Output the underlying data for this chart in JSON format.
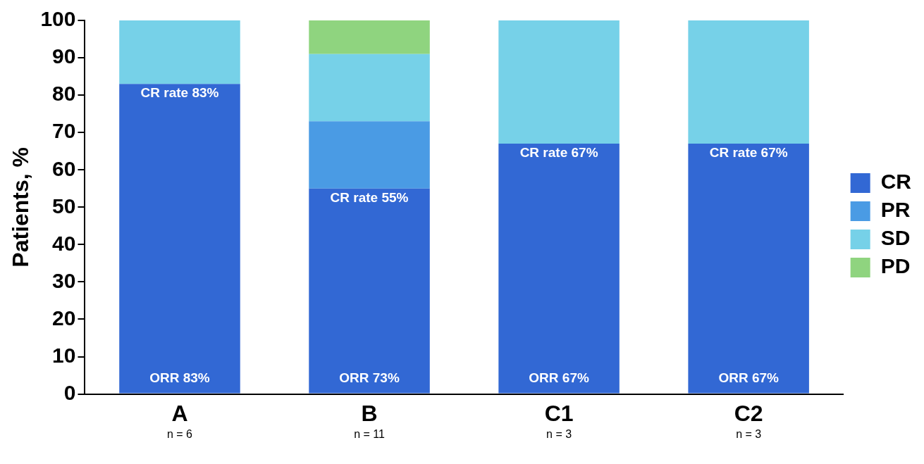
{
  "chart_data": {
    "type": "bar",
    "stacked": true,
    "categories": [
      "A",
      "B",
      "C1",
      "C2"
    ],
    "series": [
      {
        "name": "CR",
        "color": "#3268d4",
        "values": [
          83,
          55,
          67,
          67
        ]
      },
      {
        "name": "PR",
        "color": "#4a9be4",
        "values": [
          0,
          18,
          0,
          0
        ]
      },
      {
        "name": "SD",
        "color": "#76d1e8",
        "values": [
          17,
          18,
          33,
          33
        ]
      },
      {
        "name": "PD",
        "color": "#8fd47f",
        "values": [
          0,
          9,
          0,
          0
        ]
      }
    ],
    "ylabel": "Patients, %",
    "ylim": [
      0,
      100
    ],
    "yticks": [
      0,
      10,
      20,
      30,
      40,
      50,
      60,
      70,
      80,
      90,
      100
    ],
    "grid": false,
    "legend": "right",
    "annotations": [
      {
        "text": "CR rate 83%",
        "x": "A",
        "y": 83
      },
      {
        "text": "CR rate 55%",
        "x": "B",
        "y": 55
      },
      {
        "text": "CR rate 67%",
        "x": "C1",
        "y": 67
      },
      {
        "text": "CR rate 67%",
        "x": "C2",
        "y": 67
      },
      "ORR 83%",
      "ORR 73%",
      "ORR 67%",
      "ORR 67%",
      "n = 6",
      "n = 11",
      "n = 3",
      "n = 3"
    ]
  }
}
